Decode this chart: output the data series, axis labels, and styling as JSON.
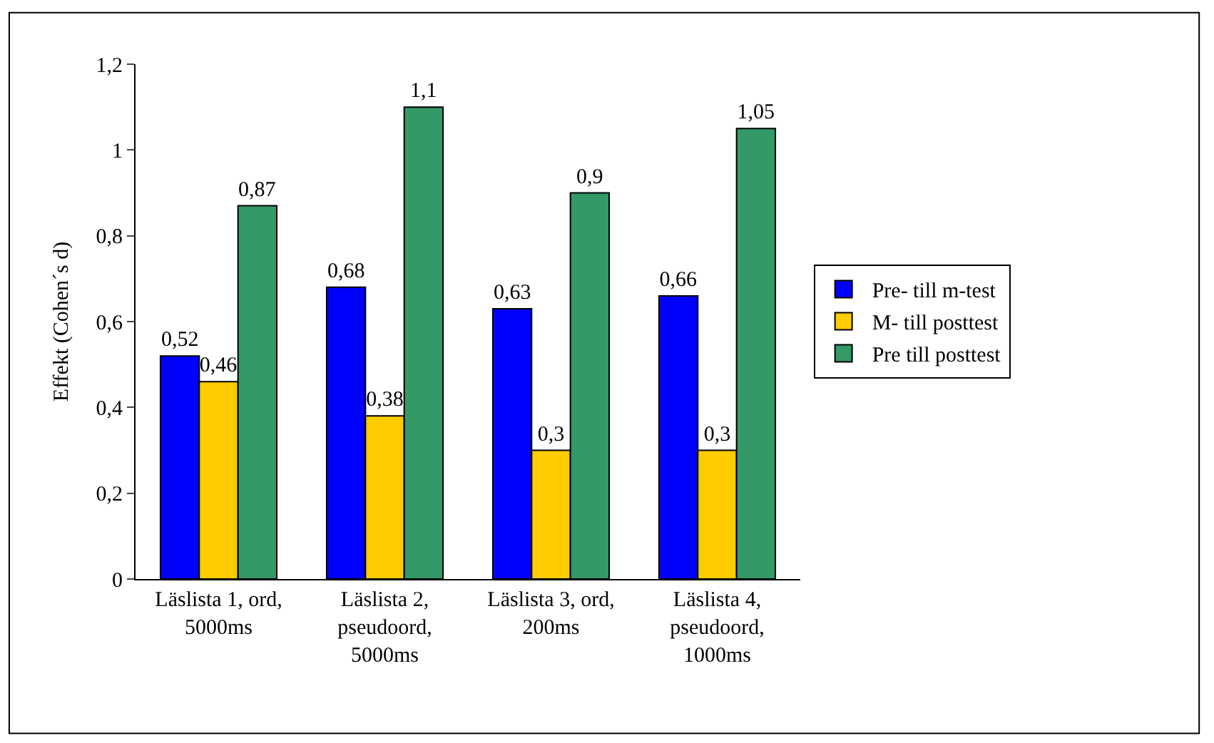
{
  "chart_data": {
    "type": "bar",
    "ylabel": "Effekt (Cohen´s d)",
    "categories": [
      "Läslista 1, ord, 5000ms",
      "Läslista 2, pseudoord, 5000ms",
      "Läslista 3, ord, 200ms",
      "Läslista 4, pseudoord, 1000ms"
    ],
    "series": [
      {
        "name": "Pre- till m-test",
        "color": "#0000ff",
        "values": [
          0.52,
          0.68,
          0.63,
          0.66
        ],
        "value_labels": [
          "0,52",
          "0,68",
          "0,63",
          "0,66"
        ]
      },
      {
        "name": "M- till posttest",
        "color": "#ffcc00",
        "values": [
          0.46,
          0.38,
          0.3,
          0.3
        ],
        "value_labels": [
          "0,46",
          "0,38",
          "0,3",
          "0,3"
        ]
      },
      {
        "name": "Pre till posttest",
        "color": "#339966",
        "values": [
          0.87,
          1.1,
          0.9,
          1.05
        ],
        "value_labels": [
          "0,87",
          "1,1",
          "0,9",
          "1,05"
        ]
      }
    ],
    "ylim": [
      0,
      1.2
    ],
    "yticks": [
      0,
      {
        "value": 0.2,
        "label": "0,2"
      },
      {
        "value": 0.4,
        "label": "0,4"
      },
      {
        "value": 0.6,
        "label": "0,6"
      },
      {
        "value": 0.8,
        "label": "0,8"
      },
      1,
      {
        "value": 1.2,
        "label": "1,2"
      }
    ],
    "legend": "right"
  }
}
